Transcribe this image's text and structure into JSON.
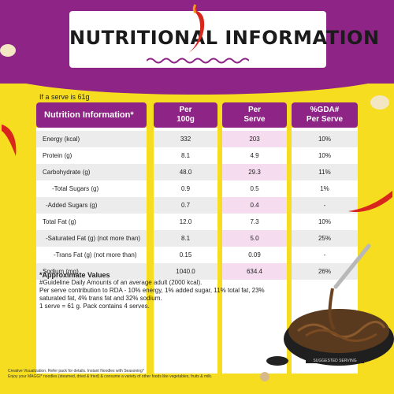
{
  "title": {
    "text": "NUTRITIONAL INFORMATION"
  },
  "serve_note": "If a serve is 61g",
  "table": {
    "header_label": "Nutrition Information*",
    "col_100g": {
      "line1": "Per",
      "line2": "100g"
    },
    "col_serve": {
      "line1": "Per",
      "line2": "Serve"
    },
    "col_gda": {
      "line1": "%GDA#",
      "line2": "Per Serve"
    },
    "rows": [
      {
        "label": "Energy (kcal)",
        "per_100g": "332",
        "per_serve": "203",
        "gda": "10%"
      },
      {
        "label": "Protein (g)",
        "per_100g": "8.1",
        "per_serve": "4.9",
        "gda": "10%"
      },
      {
        "label": "Carbohydrate (g)",
        "per_100g": "48.0",
        "per_serve": "29.3",
        "gda": "11%"
      },
      {
        "label": "-Total Sugars (g)",
        "per_100g": "0.9",
        "per_serve": "0.5",
        "gda": "1%"
      },
      {
        "label": "-Added Sugars (g)",
        "per_100g": "0.7",
        "per_serve": "0.4",
        "gda": "-"
      },
      {
        "label": "Total Fat (g)",
        "per_100g": "12.0",
        "per_serve": "7.3",
        "gda": "10%"
      },
      {
        "label": "-Saturated Fat (g) (not more than)",
        "per_100g": "8.1",
        "per_serve": "5.0",
        "gda": "25%"
      },
      {
        "label": "-Trans Fat (g) (not more than)",
        "per_100g": "0.15",
        "per_serve": "0.09",
        "gda": "-"
      },
      {
        "label": "Sodium (mg)",
        "per_100g": "1040.0",
        "per_serve": "634.4",
        "gda": "26%"
      }
    ]
  },
  "notes": {
    "approx": "*Approximate Values",
    "guideline": "#Guideline Daily Amounts of an average adult (2000 kcal).",
    "rda_line1": "Per serve contribution to RDA - 10% energy, 1% added sugar, 11% total fat, 23%",
    "rda_line2": "saturated fat, 4% trans fat and 32% sodium.",
    "serve_line": "1 serve = 61 g. Pack contains 4 serves."
  },
  "footer": {
    "line1": "Creative Visualization. Refer pack for details. Instant Noodles with Seasoning*",
    "line2": "Enjoy your MAGGI* noodles (steamed, dried & fried) & consume a variety of other foods like vegetables, fruits & milk."
  },
  "bowl_caption": "SUGGESTED SERVING",
  "colors": {
    "brand_purple": "#8e2485",
    "background_yellow": "#f6dd1f",
    "serve_shade": "#f6dcef",
    "chili_red": "#d9261c"
  }
}
